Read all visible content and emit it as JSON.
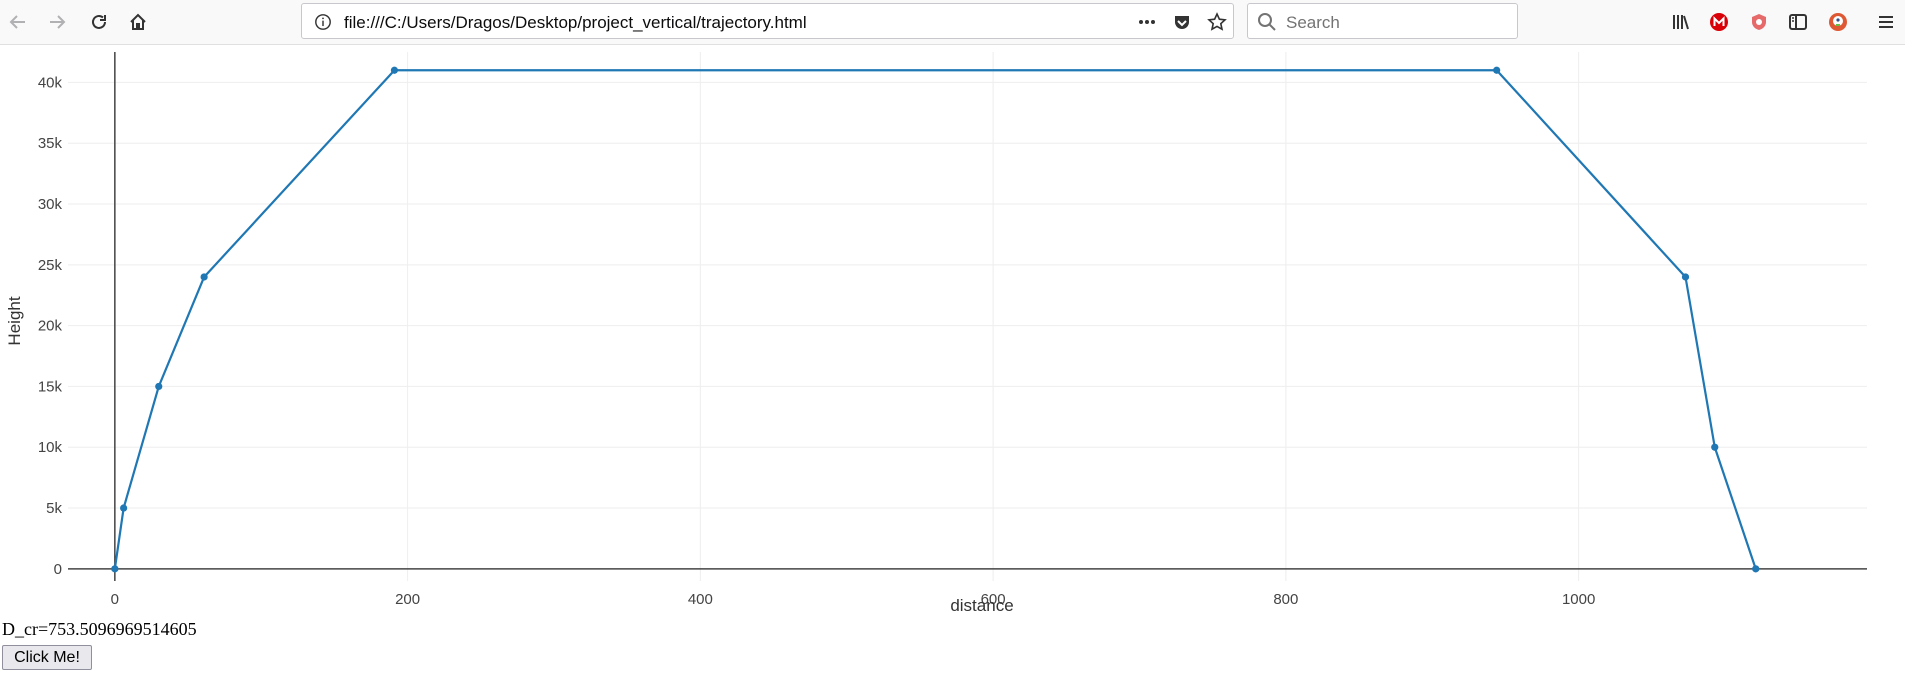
{
  "browser": {
    "url": "file:///C:/Users/Dragos/Desktop/project_vertical/trajectory.html",
    "search_placeholder": "Search"
  },
  "page": {
    "dcr_text": "D_cr=753.5096969514605",
    "button_label": "Click Me!"
  },
  "chart_data": {
    "type": "line",
    "xlabel": "distance",
    "ylabel": "Height",
    "xlim": [
      -32,
      1197
    ],
    "ylim": [
      -1000,
      42500
    ],
    "xticks": [
      0,
      200,
      400,
      600,
      800,
      1000
    ],
    "xtick_labels": [
      "0",
      "200",
      "400",
      "600",
      "800",
      "1000"
    ],
    "yticks": [
      0,
      5000,
      10000,
      15000,
      20000,
      25000,
      30000,
      35000,
      40000
    ],
    "ytick_labels": [
      "0",
      "5k",
      "10k",
      "15k",
      "20k",
      "25k",
      "30k",
      "35k",
      "40k"
    ],
    "grid": true,
    "line_color": "#1f77b4",
    "series": [
      {
        "x": [
          0,
          6,
          30,
          61,
          191,
          944,
          1073,
          1093,
          1121
        ],
        "y": [
          0,
          5000,
          15000,
          24000,
          41000,
          41000,
          24000,
          10000,
          0
        ]
      }
    ]
  }
}
